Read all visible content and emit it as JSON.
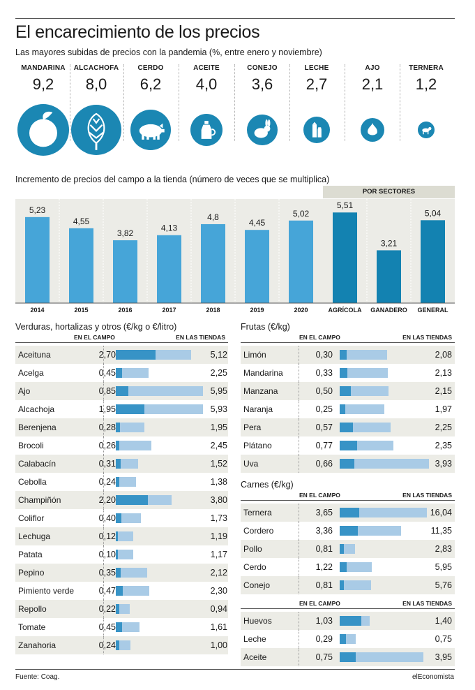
{
  "title": "El encarecimiento de los precios",
  "subtitle": "Las mayores subidas de precios con la pandemia (%, entre enero y noviembre)",
  "colors": {
    "accent": "#1b87b3",
    "bar_light": "#a9cbe6",
    "bar_dark": "#3793c6",
    "chart_bar": "#46a5d8",
    "chart_bar_dark": "#1382b1",
    "stripe": "#ecece6"
  },
  "icons": [
    {
      "label": "MANDARINA",
      "value": "9,2",
      "icon": "mandarin-icon"
    },
    {
      "label": "ALCACHOFA",
      "value": "8,0",
      "icon": "artichoke-icon"
    },
    {
      "label": "CERDO",
      "value": "6,2",
      "icon": "pig-icon"
    },
    {
      "label": "ACEITE",
      "value": "4,0",
      "icon": "oil-bottle-icon"
    },
    {
      "label": "CONEJO",
      "value": "3,6",
      "icon": "rabbit-icon"
    },
    {
      "label": "LECHE",
      "value": "2,7",
      "icon": "milk-icon"
    },
    {
      "label": "AJO",
      "value": "2,1",
      "icon": "garlic-icon"
    },
    {
      "label": "TERNERA",
      "value": "1,2",
      "icon": "calf-icon"
    }
  ],
  "chart_data": [
    {
      "type": "bar",
      "title": "Incremento de precios del campo a la tienda (número de veces que se multiplica)",
      "sector_label": "POR SECTORES",
      "categories": [
        "2014",
        "2015",
        "2016",
        "2017",
        "2018",
        "2019",
        "2020",
        "AGRÍCOLA",
        "GANADERO",
        "GENERAL"
      ],
      "values": [
        5.23,
        4.55,
        3.82,
        4.13,
        4.8,
        4.45,
        5.02,
        5.51,
        3.21,
        5.04
      ],
      "value_labels": [
        "5,23",
        "4,55",
        "3,82",
        "4,13",
        "4,8",
        "4,45",
        "5,02",
        "5,51",
        "3,21",
        "5,04"
      ],
      "ylim": [
        0,
        6.2
      ]
    },
    {
      "type": "bar",
      "title": "Verduras, hortalizas y otros (€/kg o €/litro)",
      "series_names": [
        "EN EL CAMPO",
        "EN LAS TIENDAS"
      ],
      "rows": [
        {
          "name": "Aceituna",
          "campo": "2,70",
          "tienda": "5,12"
        },
        {
          "name": "Acelga",
          "campo": "0,45",
          "tienda": "2,25"
        },
        {
          "name": "Ajo",
          "campo": "0,85",
          "tienda": "5,95"
        },
        {
          "name": "Alcachoja",
          "campo": "1,95",
          "tienda": "5,93"
        },
        {
          "name": "Berenjena",
          "campo": "0,28",
          "tienda": "1,95"
        },
        {
          "name": "Brocoli",
          "campo": "0,26",
          "tienda": "2,45"
        },
        {
          "name": "Calabacín",
          "campo": "0,31",
          "tienda": "1,52"
        },
        {
          "name": "Cebolla",
          "campo": "0,24",
          "tienda": "1,38"
        },
        {
          "name": "Champiñón",
          "campo": "2,20",
          "tienda": "3,80"
        },
        {
          "name": "Coliflor",
          "campo": "0,40",
          "tienda": "1,73"
        },
        {
          "name": "Lechuga",
          "campo": "0,12",
          "tienda": "1,19"
        },
        {
          "name": "Patata",
          "campo": "0,10",
          "tienda": "1,17"
        },
        {
          "name": "Pepino",
          "campo": "0,35",
          "tienda": "2,12"
        },
        {
          "name": "Pimiento verde",
          "campo": "0,47",
          "tienda": "2,30"
        },
        {
          "name": "Repollo",
          "campo": "0,22",
          "tienda": "0,94"
        },
        {
          "name": "Tomate",
          "campo": "0,45",
          "tienda": "1,61"
        },
        {
          "name": "Zanahoria",
          "campo": "0,24",
          "tienda": "1,00"
        }
      ]
    },
    {
      "type": "bar",
      "title": "Frutas (€/kg)",
      "series_names": [
        "EN EL CAMPO",
        "EN LAS TIENDAS"
      ],
      "rows": [
        {
          "name": "Limón",
          "campo": "0,30",
          "tienda": "2,08"
        },
        {
          "name": "Mandarina",
          "campo": "0,33",
          "tienda": "2,13"
        },
        {
          "name": "Manzana",
          "campo": "0,50",
          "tienda": "2,15"
        },
        {
          "name": "Naranja",
          "campo": "0,25",
          "tienda": "1,97"
        },
        {
          "name": "Pera",
          "campo": "0,57",
          "tienda": "2,25"
        },
        {
          "name": "Plátano",
          "campo": "0,77",
          "tienda": "2,35"
        },
        {
          "name": "Uva",
          "campo": "0,66",
          "tienda": "3,93"
        }
      ]
    },
    {
      "type": "bar",
      "title": "Carnes (€/kg)",
      "series_names": [
        "EN EL CAMPO",
        "EN LAS TIENDAS"
      ],
      "rows": [
        {
          "name": "Ternera",
          "campo": "3,65",
          "tienda": "16,04"
        },
        {
          "name": "Cordero",
          "campo": "3,36",
          "tienda": "11,35"
        },
        {
          "name": "Pollo",
          "campo": "0,81",
          "tienda": "2,83"
        },
        {
          "name": "Cerdo",
          "campo": "1,22",
          "tienda": "5,95"
        },
        {
          "name": "Conejo",
          "campo": "0,81",
          "tienda": "5,76"
        }
      ]
    },
    {
      "type": "bar",
      "title": "",
      "series_names": [
        "EN EL CAMPO",
        "EN LAS TIENDAS"
      ],
      "rows": [
        {
          "name": "Huevos",
          "campo": "1,03",
          "tienda": "1,40"
        },
        {
          "name": "Leche",
          "campo": "0,29",
          "tienda": "0,75"
        },
        {
          "name": "Aceite",
          "campo": "0,75",
          "tienda": "3,95"
        }
      ]
    }
  ],
  "footer": {
    "source": "Fuente: Coag.",
    "brand": "elEconomista"
  }
}
